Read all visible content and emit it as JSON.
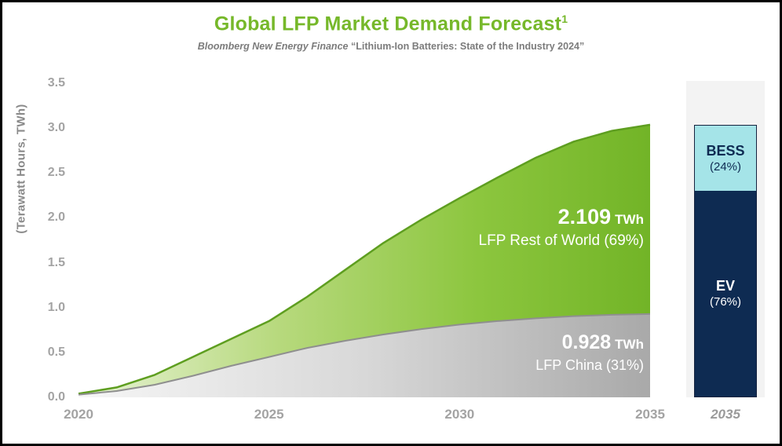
{
  "header": {
    "title": "Global LFP Market Demand Forecast",
    "title_superscript": "1",
    "subtitle_source": "Bloomberg New Energy Finance",
    "subtitle_quote": "“Lithium-Ion Batteries: State of the Industry 2024”"
  },
  "chart_data": {
    "type": "area",
    "title": "Global LFP Market Demand Forecast¹",
    "subtitle": "Bloomberg New Energy Finance “Lithium-Ion Batteries: State of the Industry 2024”",
    "ylabel": "(Terawatt Hours, TWh)",
    "xlabel": "",
    "ylim": [
      0,
      3.5
    ],
    "x": [
      2020,
      2021,
      2022,
      2023,
      2024,
      2025,
      2026,
      2027,
      2028,
      2029,
      2030,
      2031,
      2032,
      2033,
      2034,
      2035
    ],
    "series": [
      {
        "name": "LFP China",
        "stack_order": "bottom",
        "values": [
          0.03,
          0.07,
          0.14,
          0.24,
          0.35,
          0.45,
          0.55,
          0.63,
          0.7,
          0.76,
          0.81,
          0.85,
          0.88,
          0.905,
          0.92,
          0.928
        ]
      },
      {
        "name": "LFP Rest of World",
        "stack_order": "top",
        "values": [
          0.01,
          0.04,
          0.11,
          0.21,
          0.3,
          0.4,
          0.57,
          0.79,
          1.02,
          1.22,
          1.41,
          1.6,
          1.79,
          1.945,
          2.05,
          2.109
        ]
      }
    ],
    "yticks": [
      "0.0",
      "0.5",
      "1.0",
      "1.5",
      "2.0",
      "2.5",
      "3.0",
      "3.5"
    ],
    "xticks": [
      "2020",
      "2025",
      "2030",
      "2035"
    ],
    "grid": false,
    "legend": "none",
    "annotations": {
      "rest": {
        "value": "2.109",
        "unit": "TWh",
        "label": "LFP Rest of World (69%)"
      },
      "china": {
        "value": "0.928",
        "unit": "TWh",
        "label": "LFP China (31%)"
      }
    },
    "bar_2035": {
      "xlabel": "2035",
      "total_twh": 3.037,
      "segments": [
        {
          "label": "BESS",
          "pct_label": "(24%)",
          "pct": 24,
          "color": "#a5e4e8",
          "text_color": "#0e2b52"
        },
        {
          "label": "EV",
          "pct_label": "(76%)",
          "pct": 76,
          "color": "#0e2b52",
          "text_color": "#ffffff"
        }
      ]
    },
    "colors": {
      "title": "#76b82a",
      "rest_gradient": [
        "#e8f3d7",
        "#b7d97d",
        "#8cc63e",
        "#72b427"
      ],
      "china_gradient": [
        "#f6f6f6",
        "#d8d8d8",
        "#a9a9a9"
      ],
      "rest_edge": "#5e9e20",
      "china_edge": "#8f8f8f",
      "bess": "#a5e4e8",
      "ev": "#0e2b52"
    }
  }
}
